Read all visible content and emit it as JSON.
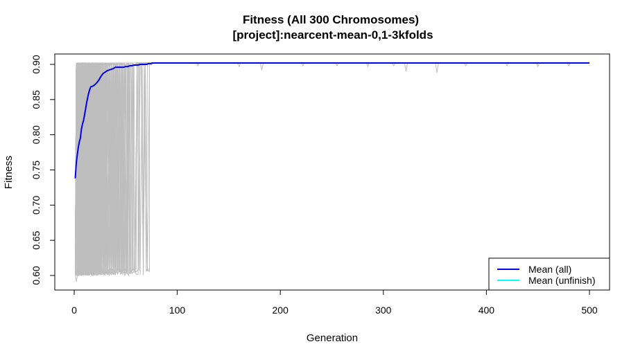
{
  "chart_data": {
    "type": "line",
    "title": "Fitness  (All 300 Chromosomes)",
    "subtitle": "[project]:nearcent-mean-0,1-3kfolds",
    "xlabel": "Generation",
    "ylabel": "Fitness",
    "xlim": [
      1,
      500
    ],
    "ylim": [
      0.59,
      0.905
    ],
    "x_ticks": [
      0,
      100,
      200,
      300,
      400,
      500
    ],
    "y_ticks": [
      0.6,
      0.65,
      0.7,
      0.75,
      0.8,
      0.85,
      0.9
    ],
    "x_tick_labels": [
      "0",
      "100",
      "200",
      "300",
      "400",
      "500"
    ],
    "y_tick_labels": [
      "0.60",
      "0.65",
      "0.70",
      "0.75",
      "0.80",
      "0.85",
      "0.90"
    ],
    "grid": false,
    "legend_position": "bottom-right",
    "series": [
      {
        "name": "Mean (all)",
        "color": "#0000ee",
        "x": [
          1,
          2,
          3,
          4,
          5,
          6,
          7,
          8,
          9,
          10,
          11,
          12,
          13,
          14,
          15,
          16,
          18,
          20,
          22,
          24,
          26,
          28,
          30,
          32,
          34,
          36,
          38,
          40,
          42,
          44,
          46,
          48,
          50,
          52,
          54,
          56,
          58,
          60,
          62,
          64,
          66,
          68,
          70,
          72,
          74,
          76,
          78,
          80,
          90,
          100,
          150,
          200,
          250,
          300,
          350,
          400,
          450,
          500
        ],
        "values": [
          0.738,
          0.76,
          0.772,
          0.782,
          0.79,
          0.795,
          0.808,
          0.815,
          0.82,
          0.828,
          0.836,
          0.845,
          0.852,
          0.859,
          0.864,
          0.868,
          0.869,
          0.871,
          0.874,
          0.878,
          0.883,
          0.887,
          0.889,
          0.891,
          0.892,
          0.893,
          0.894,
          0.896,
          0.896,
          0.896,
          0.896,
          0.896,
          0.897,
          0.897,
          0.898,
          0.898,
          0.899,
          0.899,
          0.899,
          0.9,
          0.9,
          0.9,
          0.9,
          0.901,
          0.901,
          0.902,
          0.902,
          0.902,
          0.902,
          0.902,
          0.902,
          0.902,
          0.902,
          0.902,
          0.902,
          0.902,
          0.902,
          0.902
        ]
      },
      {
        "name": "Mean (unfinish)",
        "color": "#00ffff",
        "x": [],
        "values": []
      }
    ],
    "background_series_color": "#bebebe",
    "background_series_count": 300,
    "background_series_low": 0.6,
    "background_series_high": 0.902,
    "background_convergence_range": [
      2,
      78
    ],
    "background_dips": [
      {
        "x": 120,
        "y": 0.898
      },
      {
        "x": 160,
        "y": 0.897
      },
      {
        "x": 182,
        "y": 0.892
      },
      {
        "x": 222,
        "y": 0.898
      },
      {
        "x": 255,
        "y": 0.898
      },
      {
        "x": 285,
        "y": 0.897
      },
      {
        "x": 310,
        "y": 0.898
      },
      {
        "x": 322,
        "y": 0.89
      },
      {
        "x": 352,
        "y": 0.888
      },
      {
        "x": 380,
        "y": 0.898
      },
      {
        "x": 420,
        "y": 0.898
      },
      {
        "x": 450,
        "y": 0.897
      },
      {
        "x": 480,
        "y": 0.898
      }
    ]
  }
}
